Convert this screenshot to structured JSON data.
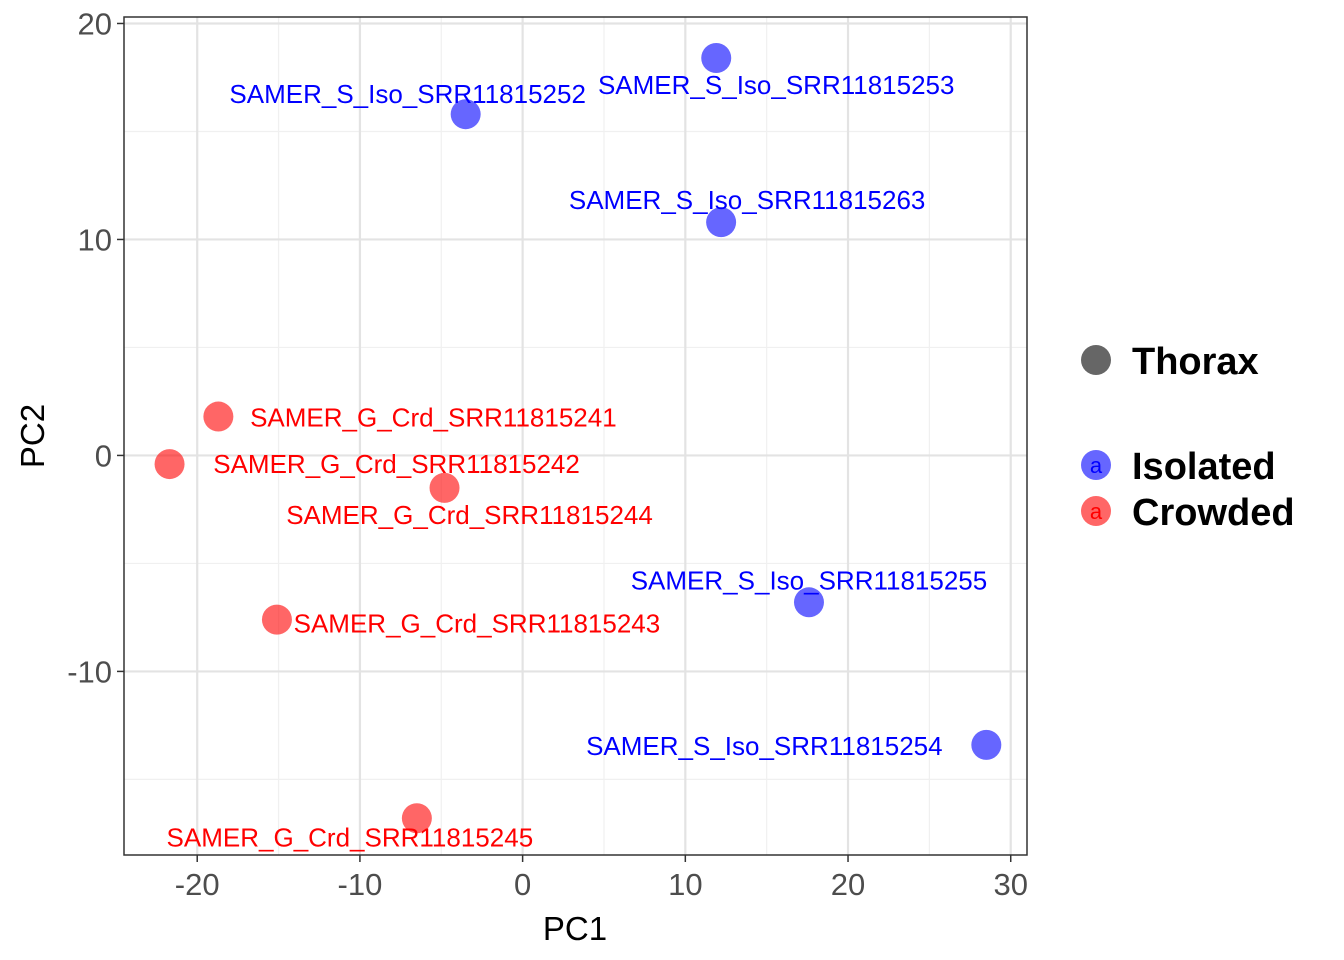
{
  "chart_data": {
    "type": "scatter",
    "title": "",
    "xlabel": "PC1",
    "ylabel": "PC2",
    "xlim": [
      -24.5,
      31
    ],
    "ylim": [
      -18.5,
      20.3
    ],
    "xticks": [
      -20,
      -10,
      0,
      10,
      20,
      30
    ],
    "yticks": [
      -10,
      0,
      10,
      20
    ],
    "x_tick_labels": [
      "-20",
      "-10",
      "0",
      "10",
      "20",
      "30"
    ],
    "y_tick_labels": [
      "-10",
      "0",
      "10",
      "20"
    ],
    "grid": true,
    "legend_position": "right",
    "legend": {
      "shape_title": "Thorax",
      "shape_color": "#666666",
      "groups": [
        {
          "name": "Isolated",
          "color": "#0000ff"
        },
        {
          "name": "Crowded",
          "color": "#ff0000"
        }
      ],
      "key_glyph": "a"
    },
    "series": [
      {
        "name": "Isolated",
        "color": "#0000ff",
        "points": [
          {
            "label": "SAMER_S_Iso_SRR11815252",
            "x": -3.5,
            "y": 15.8
          },
          {
            "label": "SAMER_S_Iso_SRR11815253",
            "x": 11.9,
            "y": 18.4
          },
          {
            "label": "SAMER_S_Iso_SRR11815263",
            "x": 12.2,
            "y": 10.8
          },
          {
            "label": "SAMER_S_Iso_SRR11815255",
            "x": 17.6,
            "y": -6.8
          },
          {
            "label": "SAMER_S_Iso_SRR11815254",
            "x": 28.5,
            "y": -13.4
          }
        ]
      },
      {
        "name": "Crowded",
        "color": "#ff0000",
        "points": [
          {
            "label": "SAMER_G_Crd_SRR11815241",
            "x": -18.7,
            "y": 1.8
          },
          {
            "label": "SAMER_G_Crd_SRR11815242",
            "x": -21.7,
            "y": -0.4
          },
          {
            "label": "SAMER_G_Crd_SRR11815244",
            "x": -4.8,
            "y": -1.5
          },
          {
            "label": "SAMER_G_Crd_SRR11815243",
            "x": -15.1,
            "y": -7.6
          },
          {
            "label": "SAMER_G_Crd_SRR11815245",
            "x": -6.5,
            "y": -16.8
          }
        ]
      }
    ]
  }
}
